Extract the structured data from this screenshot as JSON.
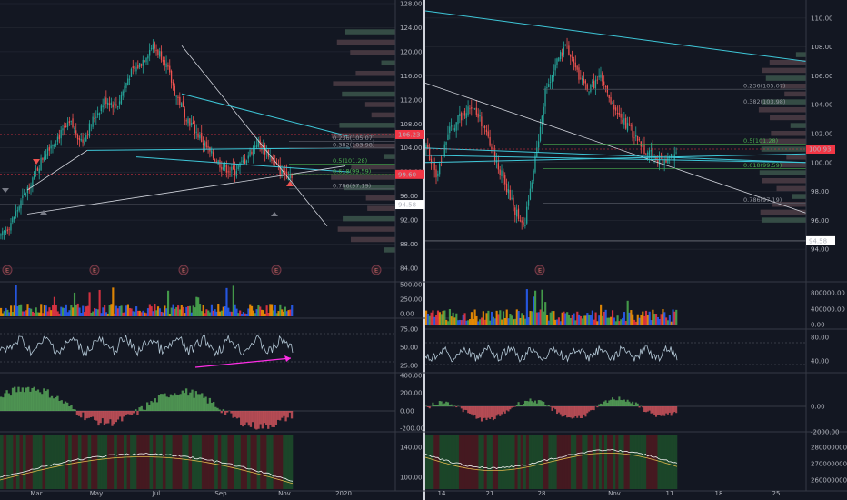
{
  "colors": {
    "background": "#131722",
    "up": "#ef5350",
    "down": "#26a69a",
    "gridline": "#2a2e39",
    "axis_text": "#b2b5be",
    "trendline_cyan": "#3ec7d8",
    "trendline_white": "#d1d4dc",
    "last_price_badge": "#f23645",
    "rsi_arrow": "#ff2ee6",
    "fib_text": "#9598a1",
    "fib_green": "#4caf50",
    "volume_blue": "#2962ff",
    "volume_orange": "#ff9800",
    "volume_green": "#4caf50",
    "volume_red": "#f23645"
  },
  "left_panel": {
    "price_axis": [
      "128.00",
      "124.00",
      "120.00",
      "116.00",
      "112.00",
      "108.00",
      "104.00",
      "100.00",
      "96.00",
      "92.00",
      "88.00",
      "84.00"
    ],
    "price_labels": {
      "last_price": "106.23",
      "current": "99.60",
      "target": "94.58"
    },
    "fib_labels": [
      "0.236(105.07)",
      "0.382(103.98)",
      "0.5(101.28)",
      "0.618(99.59)",
      "0.786(97.19)"
    ],
    "earnings_marker": "E",
    "volume_axis": [
      "500.00",
      "250.00",
      "0.00"
    ],
    "rsi_axis": [
      "75.00",
      "50.00",
      "25.00"
    ],
    "macd_axis": [
      "400.00",
      "200.00",
      "0.00",
      "-200.00"
    ],
    "obv_axis": [
      "140.00",
      "100.00"
    ],
    "time_axis": [
      "Mar",
      "May",
      "Jul",
      "Sep",
      "Nov",
      "2020"
    ]
  },
  "right_panel": {
    "price_axis": [
      "110.00",
      "108.00",
      "106.00",
      "104.00",
      "102.00",
      "100.00",
      "98.00",
      "96.00",
      "94.00"
    ],
    "price_labels": {
      "current": "100.93",
      "target": "94.58"
    },
    "fib_labels": [
      "0.236(105.07)",
      "0.382(103.98)",
      "0.5(101.28)",
      "0.618(99.59)",
      "0.786(97.19)"
    ],
    "earnings_marker": "E",
    "volume_axis": [
      "800000.00",
      "400000.00",
      "0.00"
    ],
    "rsi_axis": [
      "80.00",
      "40.00"
    ],
    "macd_axis": [
      "0.00",
      "-2000.00"
    ],
    "obv_axis": [
      "280000000.00",
      "270000000.00",
      "260000000.00"
    ],
    "time_axis": [
      "14",
      "21",
      "28",
      "Nov",
      "11",
      "18",
      "25"
    ]
  },
  "chart_data": [
    {
      "type": "candlestick",
      "title": "",
      "x": [
        "Mar",
        "May",
        "Jul",
        "Sep",
        "Nov",
        "2020"
      ],
      "approx_close_path": [
        89,
        92,
        96,
        100,
        104,
        106,
        108,
        105,
        109,
        112,
        111,
        116,
        118,
        121,
        119,
        113,
        109,
        106,
        103,
        101,
        100,
        102,
        105,
        103,
        100,
        99.6
      ],
      "ylim": [
        84,
        128
      ],
      "fibonacci": [
        {
          "level": 0.236,
          "price": 105.07
        },
        {
          "level": 0.382,
          "price": 103.98
        },
        {
          "level": 0.5,
          "price": 101.28
        },
        {
          "level": 0.618,
          "price": 99.59
        },
        {
          "level": 0.786,
          "price": 97.19
        }
      ]
    },
    {
      "type": "candlestick",
      "title": "",
      "x": [
        "14",
        "21",
        "28",
        "Nov",
        "11",
        "18",
        "25"
      ],
      "approx_close_path": [
        101,
        99,
        102,
        103,
        104,
        103,
        101,
        99,
        97,
        95.5,
        100,
        105,
        107,
        108,
        106,
        105,
        106,
        104,
        103,
        102,
        101,
        100.5,
        100,
        100.9
      ],
      "ylim": [
        93,
        111
      ],
      "fibonacci": [
        {
          "level": 0.236,
          "price": 105.07
        },
        {
          "level": 0.382,
          "price": 103.98
        },
        {
          "level": 0.5,
          "price": 101.28
        },
        {
          "level": 0.618,
          "price": 99.59
        },
        {
          "level": 0.786,
          "price": 97.19
        }
      ]
    }
  ]
}
